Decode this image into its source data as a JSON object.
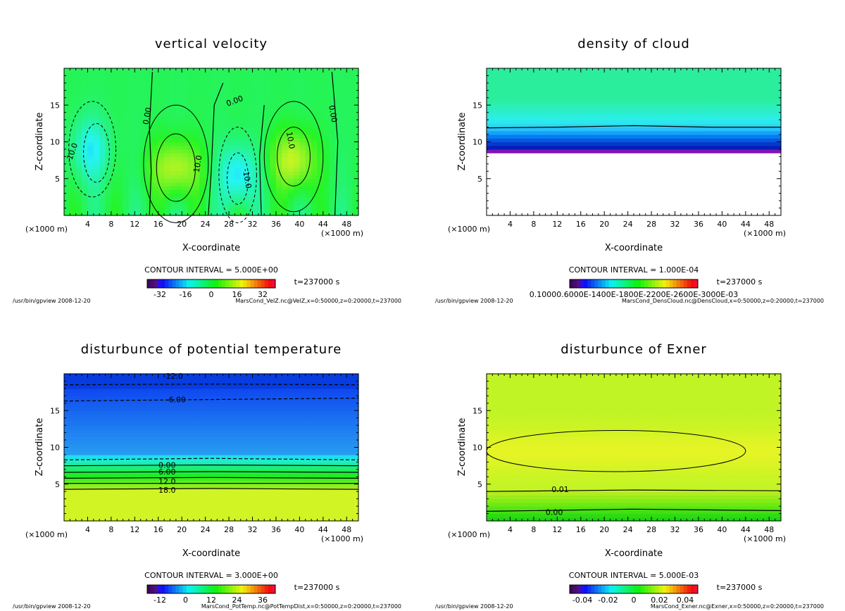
{
  "chart_data": [
    {
      "type": "heatmap",
      "title": "vertical velocity",
      "xlabel": "X-coordinate",
      "ylabel": "Z-coordinate",
      "x_unit": "(×1000 m)",
      "xlim": [
        0,
        50
      ],
      "ylim": [
        0,
        20
      ],
      "x_ticks": [
        "4",
        "8",
        "12",
        "16",
        "20",
        "24",
        "28",
        "32",
        "36",
        "40",
        "44",
        "48"
      ],
      "y_ticks": [
        "5",
        "10",
        "15"
      ],
      "contour_interval": "CONTOUR INTERVAL = 5.000E+00",
      "time": "t=237000 s",
      "colorbar_ticks": [
        "-32",
        "-16",
        "0",
        "16",
        "32"
      ],
      "contour_labels": [
        "0.00",
        "0.00",
        "0.00",
        "10.0",
        "10.0",
        "-10.0",
        "-10.0"
      ],
      "footer_left": "/usr/bin/gpview   2008-12-20",
      "footer_right": "MarsCond_VelZ.nc@VelZ,x=0:50000,z=0:20000,t=237000"
    },
    {
      "type": "heatmap",
      "title": "density of cloud",
      "xlabel": "X-coordinate",
      "ylabel": "Z-coordinate",
      "x_unit": "(×1000 m)",
      "xlim": [
        0,
        50
      ],
      "ylim": [
        0,
        20
      ],
      "x_ticks": [
        "4",
        "8",
        "12",
        "16",
        "20",
        "24",
        "28",
        "32",
        "36",
        "40",
        "44",
        "48"
      ],
      "y_ticks": [
        "5",
        "10",
        "15"
      ],
      "contour_interval": "CONTOUR INTERVAL = 1.000E-04",
      "time": "t=237000 s",
      "colorbar_ticks": [
        "0.10000.6000E-1400E-1800E-2200E-2600E-3000E-03"
      ],
      "footer_left": "/usr/bin/gpview   2008-12-20",
      "footer_right": "MarsCond_DensCloud.nc@DensCloud,x=0:50000,z=0:20000,t=237000"
    },
    {
      "type": "heatmap",
      "title": "disturbunce of potential temperature",
      "xlabel": "X-coordinate",
      "ylabel": "Z-coordinate",
      "x_unit": "(×1000 m)",
      "xlim": [
        0,
        50
      ],
      "ylim": [
        0,
        20
      ],
      "x_ticks": [
        "4",
        "8",
        "12",
        "16",
        "20",
        "24",
        "28",
        "32",
        "36",
        "40",
        "44",
        "48"
      ],
      "y_ticks": [
        "5",
        "10",
        "15"
      ],
      "contour_interval": "CONTOUR INTERVAL = 3.000E+00",
      "time": "t=237000 s",
      "colorbar_ticks": [
        "-12",
        "0",
        "12",
        "24",
        "36"
      ],
      "contour_labels": [
        "-12.0",
        "-6.00",
        "0.00",
        "6.00",
        "12.0",
        "18.0"
      ],
      "footer_left": "/usr/bin/gpview   2008-12-20",
      "footer_right": "MarsCond_PotTemp.nc@PotTempDist,x=0:50000,z=0:20000,t=237000"
    },
    {
      "type": "heatmap",
      "title": "disturbunce of Exner",
      "xlabel": "X-coordinate",
      "ylabel": "Z-coordinate",
      "x_unit": "(×1000 m)",
      "xlim": [
        0,
        50
      ],
      "ylim": [
        0,
        20
      ],
      "x_ticks": [
        "4",
        "8",
        "12",
        "16",
        "20",
        "24",
        "28",
        "32",
        "36",
        "40",
        "44",
        "48"
      ],
      "y_ticks": [
        "5",
        "10",
        "15"
      ],
      "contour_interval": "CONTOUR INTERVAL = 5.000E-03",
      "time": "t=237000 s",
      "colorbar_ticks": [
        "-0.04",
        "-0.02",
        "0",
        "0.02",
        "0.04"
      ],
      "contour_labels": [
        "0.01",
        "0.00"
      ],
      "footer_left": "/usr/bin/gpview   2008-12-20",
      "footer_right": "MarsCond_Exner.nc@Exner,x=0:50000,z=0:20000,t=237000"
    }
  ]
}
